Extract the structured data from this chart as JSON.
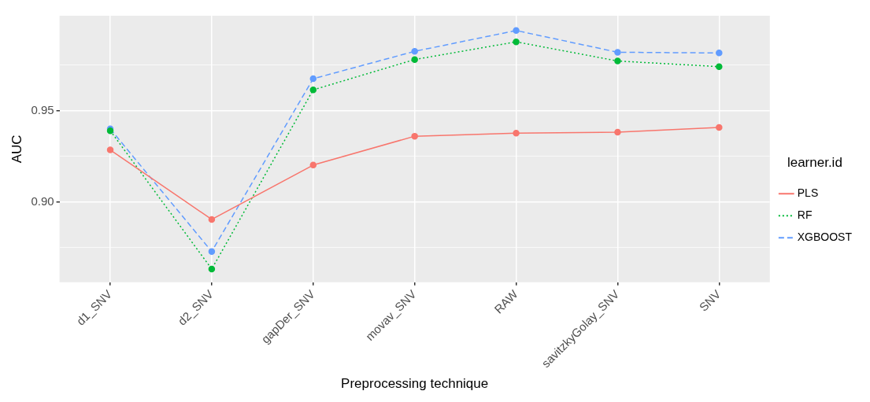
{
  "chart_data": {
    "type": "line",
    "xlabel": "Preprocessing technique",
    "ylabel": "AUC",
    "legend_title": "learner.id",
    "legend": "right",
    "grid": true,
    "marker": "circle",
    "categories": [
      "d1_SNV",
      "d2_SNV",
      "gapDer_SNV",
      "movav_SNV",
      "RAW",
      "savitzkyGolay_SNV",
      "SNV"
    ],
    "ylim": [
      0.856,
      1.002
    ],
    "yticks": [
      {
        "value": 0.875,
        "label": null
      },
      {
        "value": 0.9,
        "label": "0.90"
      },
      {
        "value": 0.925,
        "label": null
      },
      0.95,
      {
        "value": 0.975,
        "label": null
      }
    ],
    "series": [
      {
        "name": "PLS",
        "color": "#f8766d",
        "line_style": "solid",
        "values": [
          0.9285,
          0.8904,
          0.9202,
          0.936,
          0.9377,
          0.9382,
          0.9408
        ]
      },
      {
        "name": "RF",
        "color": "#00ba38",
        "line_style": "dotted",
        "values": [
          0.939,
          0.8632,
          0.9614,
          0.978,
          0.9877,
          0.9772,
          0.9741
        ]
      },
      {
        "name": "XGBOOST",
        "color": "#619cff",
        "line_style": "dashed",
        "values": [
          0.94,
          0.8728,
          0.9675,
          0.9825,
          0.9939,
          0.982,
          0.9816
        ]
      }
    ]
  }
}
